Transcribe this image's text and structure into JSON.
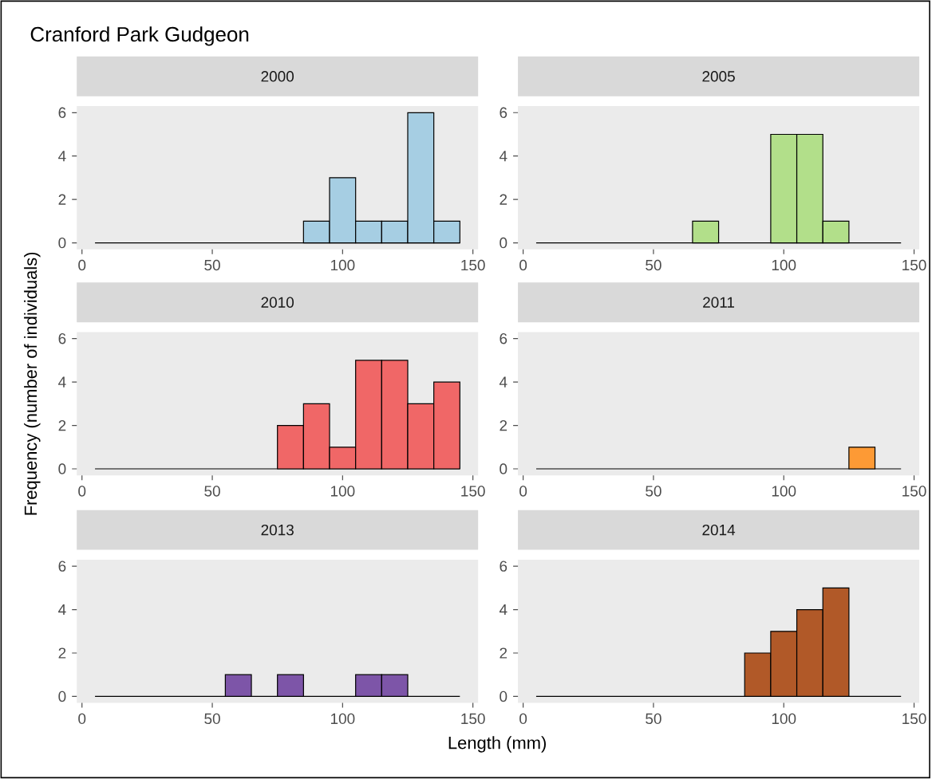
{
  "chart_data": [
    {
      "type": "histogram",
      "title": "2000",
      "annotations": [
        "Cranford Park Gudgeon"
      ],
      "ylabel": "Frequency (number of individuals)",
      "bins": [
        5,
        15,
        25,
        35,
        45,
        55,
        65,
        75,
        85,
        95,
        105,
        115,
        125,
        135,
        145
      ],
      "values": [
        0,
        0,
        0,
        0,
        0,
        0,
        0,
        0,
        1,
        3,
        1,
        1,
        6,
        1
      ],
      "color": "#a6cee3",
      "ref_lines": [
        {
          "axis": "y",
          "value": 0,
          "color": "#000000"
        }
      ],
      "xlim": [
        -2,
        152
      ],
      "ylim": [
        -0.3,
        6.3
      ],
      "xticks": [
        0,
        50,
        100,
        150
      ],
      "yticks": [
        0,
        2,
        4,
        6
      ]
    },
    {
      "type": "histogram",
      "title": "2005",
      "bins": [
        5,
        15,
        25,
        35,
        45,
        55,
        65,
        75,
        85,
        95,
        105,
        115,
        125,
        135,
        145
      ],
      "values": [
        0,
        0,
        0,
        0,
        0,
        0,
        1,
        0,
        0,
        5,
        5,
        1,
        0,
        0
      ],
      "color": "#b2df8a",
      "ref_lines": [
        {
          "axis": "y",
          "value": 0,
          "color": "#000000"
        }
      ],
      "xlim": [
        -2,
        152
      ],
      "ylim": [
        -0.3,
        6.3
      ],
      "xticks": [
        0,
        50,
        100,
        150
      ],
      "yticks": [
        0,
        2,
        4,
        6
      ]
    },
    {
      "type": "histogram",
      "title": "2010",
      "bins": [
        5,
        15,
        25,
        35,
        45,
        55,
        65,
        75,
        85,
        95,
        105,
        115,
        125,
        135,
        145
      ],
      "values": [
        0,
        0,
        0,
        0,
        0,
        0,
        0,
        2,
        3,
        1,
        5,
        5,
        3,
        4
      ],
      "color": "#f06767",
      "ref_lines": [
        {
          "axis": "y",
          "value": 0,
          "color": "#000000"
        }
      ],
      "xlim": [
        -2,
        152
      ],
      "ylim": [
        -0.3,
        6.3
      ],
      "xticks": [
        0,
        50,
        100,
        150
      ],
      "yticks": [
        0,
        2,
        4,
        6
      ]
    },
    {
      "type": "histogram",
      "title": "2011",
      "bins": [
        5,
        15,
        25,
        35,
        45,
        55,
        65,
        75,
        85,
        95,
        105,
        115,
        125,
        135,
        145
      ],
      "values": [
        0,
        0,
        0,
        0,
        0,
        0,
        0,
        0,
        0,
        0,
        0,
        0,
        1,
        0
      ],
      "color": "#fd9a35",
      "ref_lines": [
        {
          "axis": "y",
          "value": 0,
          "color": "#000000"
        }
      ],
      "xlim": [
        -2,
        152
      ],
      "ylim": [
        -0.3,
        6.3
      ],
      "xticks": [
        0,
        50,
        100,
        150
      ],
      "yticks": [
        0,
        2,
        4,
        6
      ]
    },
    {
      "type": "histogram",
      "title": "2013",
      "xlabel": "Length (mm)",
      "bins": [
        5,
        15,
        25,
        35,
        45,
        55,
        65,
        75,
        85,
        95,
        105,
        115,
        125,
        135,
        145
      ],
      "values": [
        0,
        0,
        0,
        0,
        0,
        1,
        0,
        1,
        0,
        0,
        1,
        1,
        0,
        0
      ],
      "color": "#7d55a8",
      "ref_lines": [
        {
          "axis": "y",
          "value": 0,
          "color": "#000000"
        }
      ],
      "xlim": [
        -2,
        152
      ],
      "ylim": [
        -0.3,
        6.3
      ],
      "xticks": [
        0,
        50,
        100,
        150
      ],
      "yticks": [
        0,
        2,
        4,
        6
      ]
    },
    {
      "type": "histogram",
      "title": "2014",
      "bins": [
        5,
        15,
        25,
        35,
        45,
        55,
        65,
        75,
        85,
        95,
        105,
        115,
        125,
        135,
        145
      ],
      "values": [
        0,
        0,
        0,
        0,
        0,
        0,
        0,
        0,
        2,
        3,
        4,
        5,
        0,
        0
      ],
      "color": "#b15928",
      "ref_lines": [
        {
          "axis": "y",
          "value": 0,
          "color": "#000000"
        }
      ],
      "xlim": [
        -2,
        152
      ],
      "ylim": [
        -0.3,
        6.3
      ],
      "xticks": [
        0,
        50,
        100,
        150
      ],
      "yticks": [
        0,
        2,
        4,
        6
      ]
    }
  ]
}
